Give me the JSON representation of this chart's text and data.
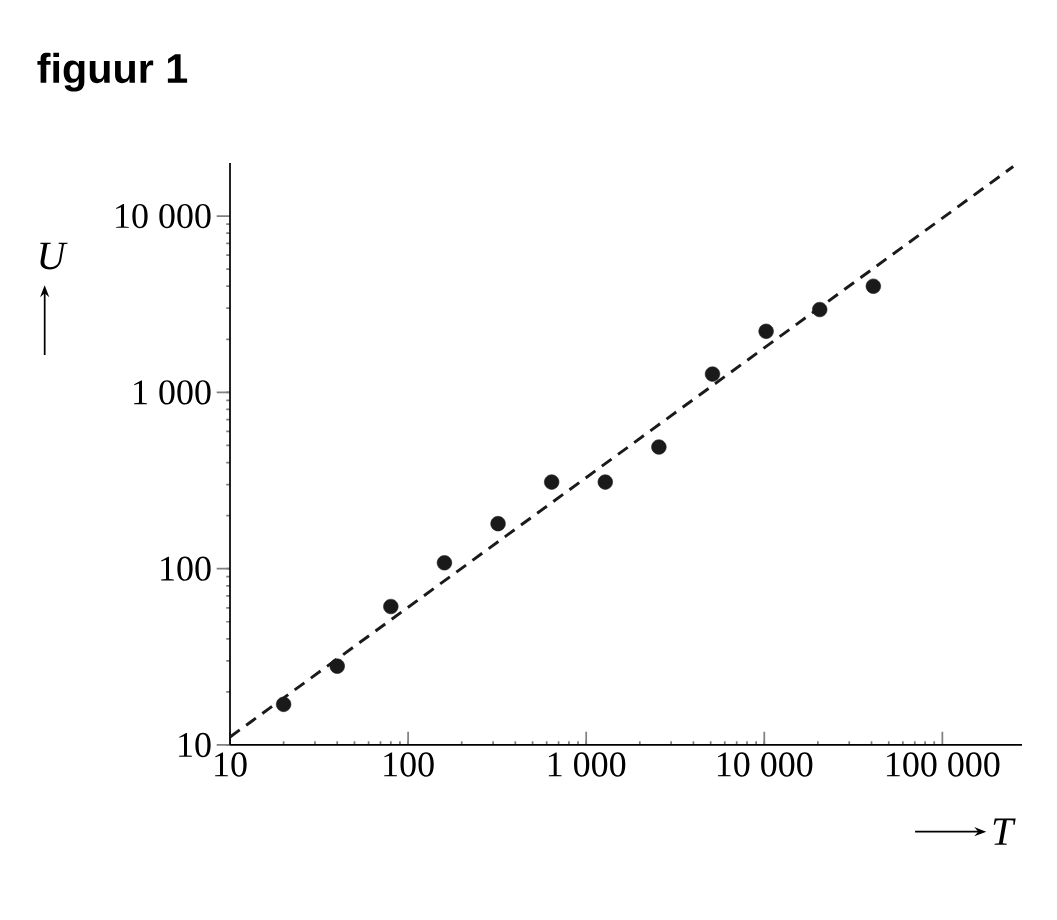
{
  "chart_data": {
    "type": "scatter",
    "title": "figuur 1",
    "xlabel": "T",
    "ylabel": "U",
    "log": "xy",
    "xlim": [
      10,
      280000
    ],
    "ylim": [
      10,
      20000
    ],
    "xticks": [
      10,
      100,
      {
        "value": 1000,
        "label": "1 000"
      },
      {
        "value": 10000,
        "label": "10 000"
      },
      {
        "value": 100000,
        "label": "100 000"
      }
    ],
    "yticks": [
      10,
      100,
      {
        "value": 1000,
        "label": "1 000"
      },
      {
        "value": 10000,
        "label": "10 000"
      }
    ],
    "grid": false,
    "series": [
      {
        "color": "#1a1a1a",
        "marker": "circle",
        "x": [
          20,
          40,
          80,
          160,
          320,
          640,
          1280,
          2560,
          5120,
          10240,
          20480,
          40960
        ],
        "values": [
          17,
          28,
          61,
          108,
          180,
          310,
          310,
          490,
          1270,
          2220,
          2950,
          4000
        ]
      },
      {
        "type": "line",
        "color": "#1a1a1a",
        "line_style": "dashed",
        "marker": "none",
        "x": [
          10,
          250000
        ],
        "values": [
          11.1,
          19100
        ]
      }
    ]
  }
}
